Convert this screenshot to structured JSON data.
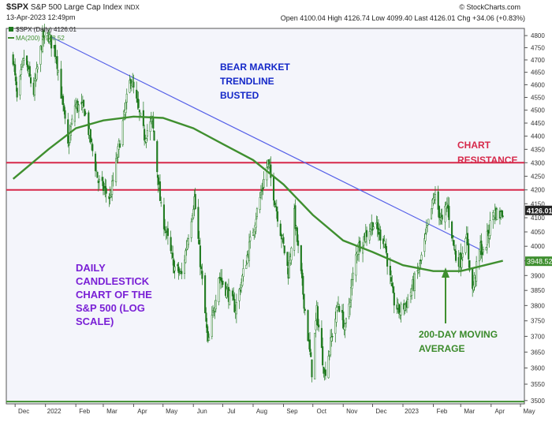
{
  "header": {
    "symbol": "$SPX",
    "name": "S&P 500 Large Cap Index",
    "exchange": "INDX",
    "datetime": "13-Apr-2023 12:49pm",
    "quote": "Open 4100.04  High 4126.74  Low 4099.40  Last 4126.01  Chg +34.06 (+0.83%)",
    "source": "© StockCharts.com"
  },
  "legend": {
    "price": "$SPX (Daily) 4126.01",
    "ma": "MA(200) 3948.52"
  },
  "annotations": {
    "bear": [
      "BEAR MARKET",
      "TRENDLINE",
      "BUSTED"
    ],
    "resistance": [
      "CHART",
      "RESISTANCE"
    ],
    "ma": [
      "200-DAY MOVING",
      "AVERAGE"
    ],
    "desc": [
      "DAILY",
      "CANDLESTICK",
      "CHART OF THE",
      "S&P 500 (LOG",
      "SCALE)"
    ]
  },
  "colors": {
    "background": "#f4f5fb",
    "candle": "#1f7a1f",
    "ma": "#3f8f2f",
    "trendline": "#5560e8",
    "resistance": "#d6284a",
    "bear_text": "#1428c8",
    "res_text": "#d6284a",
    "ma_text": "#3a8a2a",
    "desc_text": "#7a20d6",
    "last_tag": "#222222",
    "ma_tag": "#3f8f2f"
  },
  "chart_data": {
    "type": "candlestick",
    "y_scale": "log",
    "ylim": [
      3490,
      4830
    ],
    "y_ticks": [
      3500,
      3550,
      3600,
      3650,
      3700,
      3750,
      3800,
      3850,
      3900,
      3950,
      4000,
      4050,
      4100,
      4150,
      4200,
      4250,
      4300,
      4350,
      4400,
      4450,
      4500,
      4550,
      4600,
      4650,
      4700,
      4750,
      4800
    ],
    "x_ticks": [
      "Dec",
      "2022",
      "Feb",
      "Mar",
      "Apr",
      "May",
      "Jun",
      "Jul",
      "Aug",
      "Sep",
      "Oct",
      "Nov",
      "Dec",
      "2023",
      "Feb",
      "Mar",
      "Apr",
      "May"
    ],
    "last_price": "4126.01",
    "ma_last": "3948.52",
    "resistance_levels": [
      4200,
      4300
    ],
    "trendline": [
      [
        "2022-01-04",
        4800
      ],
      [
        "2023-03-20",
        3990
      ]
    ],
    "price_path": [
      [
        "2021-11-29",
        4710
      ],
      [
        "2021-12-03",
        4540
      ],
      [
        "2021-12-10",
        4710
      ],
      [
        "2021-12-20",
        4570
      ],
      [
        "2021-12-29",
        4790
      ],
      [
        "2022-01-04",
        4800
      ],
      [
        "2022-01-12",
        4720
      ],
      [
        "2022-01-24",
        4360
      ],
      [
        "2022-01-31",
        4520
      ],
      [
        "2022-02-10",
        4500
      ],
      [
        "2022-02-24",
        4230
      ],
      [
        "2022-03-08",
        4170
      ],
      [
        "2022-03-29",
        4630
      ],
      [
        "2022-04-12",
        4400
      ],
      [
        "2022-04-20",
        4460
      ],
      [
        "2022-04-29",
        4130
      ],
      [
        "2022-05-12",
        3930
      ],
      [
        "2022-05-20",
        3900
      ],
      [
        "2022-06-02",
        4170
      ],
      [
        "2022-06-16",
        3670
      ],
      [
        "2022-06-27",
        3900
      ],
      [
        "2022-07-14",
        3790
      ],
      [
        "2022-08-16",
        4300
      ],
      [
        "2022-09-06",
        3910
      ],
      [
        "2022-09-12",
        4110
      ],
      [
        "2022-09-30",
        3590
      ],
      [
        "2022-10-05",
        3780
      ],
      [
        "2022-10-13",
        3580
      ],
      [
        "2022-10-27",
        3810
      ],
      [
        "2022-11-03",
        3720
      ],
      [
        "2022-11-15",
        3990
      ],
      [
        "2022-12-01",
        4080
      ],
      [
        "2022-12-13",
        4020
      ],
      [
        "2022-12-22",
        3820
      ],
      [
        "2022-12-28",
        3780
      ],
      [
        "2023-01-05",
        3810
      ],
      [
        "2023-01-18",
        3930
      ],
      [
        "2023-02-02",
        4180
      ],
      [
        "2023-02-10",
        4080
      ],
      [
        "2023-02-15",
        4150
      ],
      [
        "2023-02-24",
        3960
      ],
      [
        "2023-03-01",
        3950
      ],
      [
        "2023-03-06",
        4050
      ],
      [
        "2023-03-13",
        3850
      ],
      [
        "2023-03-21",
        4000
      ],
      [
        "2023-03-24",
        3970
      ],
      [
        "2023-04-03",
        4120
      ],
      [
        "2023-04-11",
        4110
      ],
      [
        "2023-04-13",
        4126
      ]
    ],
    "ma_path": [
      [
        "2021-11-29",
        4240
      ],
      [
        "2022-01-04",
        4350
      ],
      [
        "2022-02-01",
        4430
      ],
      [
        "2022-03-01",
        4460
      ],
      [
        "2022-04-01",
        4475
      ],
      [
        "2022-05-01",
        4470
      ],
      [
        "2022-06-01",
        4430
      ],
      [
        "2022-07-01",
        4370
      ],
      [
        "2022-08-01",
        4310
      ],
      [
        "2022-09-01",
        4220
      ],
      [
        "2022-10-01",
        4110
      ],
      [
        "2022-11-01",
        4020
      ],
      [
        "2022-12-01",
        3980
      ],
      [
        "2023-01-01",
        3935
      ],
      [
        "2023-02-01",
        3915
      ],
      [
        "2023-03-01",
        3915
      ],
      [
        "2023-04-13",
        3950
      ]
    ]
  }
}
